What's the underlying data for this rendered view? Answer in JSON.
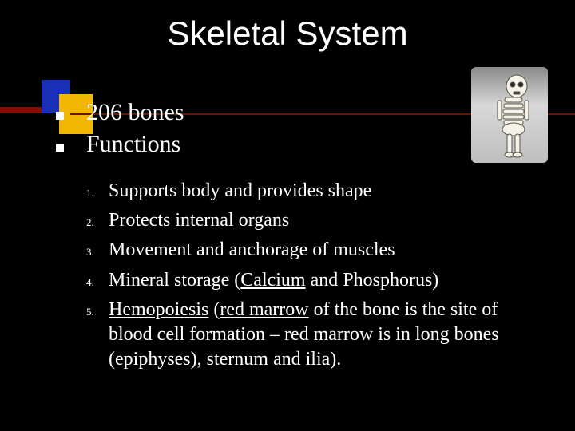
{
  "background_color": "#000000",
  "text_color": "#ffffff",
  "title": {
    "text": "Skeletal System",
    "font_family": "Verdana",
    "font_size": 42,
    "color": "#ffffff"
  },
  "accent": {
    "bar_color": "#7a1300",
    "blue": "#1a2fb5",
    "yellow": "#f2b705"
  },
  "bullets": {
    "marker": "square",
    "marker_color": "#ffffff",
    "font_size": 30,
    "items": [
      {
        "text": "206 bones"
      },
      {
        "text": "Functions"
      }
    ]
  },
  "numbered": {
    "font_size": 24,
    "label_font_size": 13,
    "items": [
      {
        "n": "1.",
        "html": "Supports body and provides shape"
      },
      {
        "n": "2.",
        "html": "Protects internal organs"
      },
      {
        "n": "3.",
        "html": "Movement and anchorage of muscles"
      },
      {
        "n": "4.",
        "html": "Mineral storage (<span class=\"u\">Calcium</span> and Phosphorus)"
      },
      {
        "n": "5.",
        "html": "<span class=\"u\">Hemopoiesis</span> (<span class=\"u\">red marrow</span> of the bone is the site of blood cell formation – red marrow is in long bones (epiphyses), sternum and ilia)."
      }
    ]
  },
  "image": {
    "alt": "cartoon skeleton",
    "bg_gradient": [
      "#8a8a8a",
      "#d8d8d8",
      "#bfbfbf"
    ]
  }
}
